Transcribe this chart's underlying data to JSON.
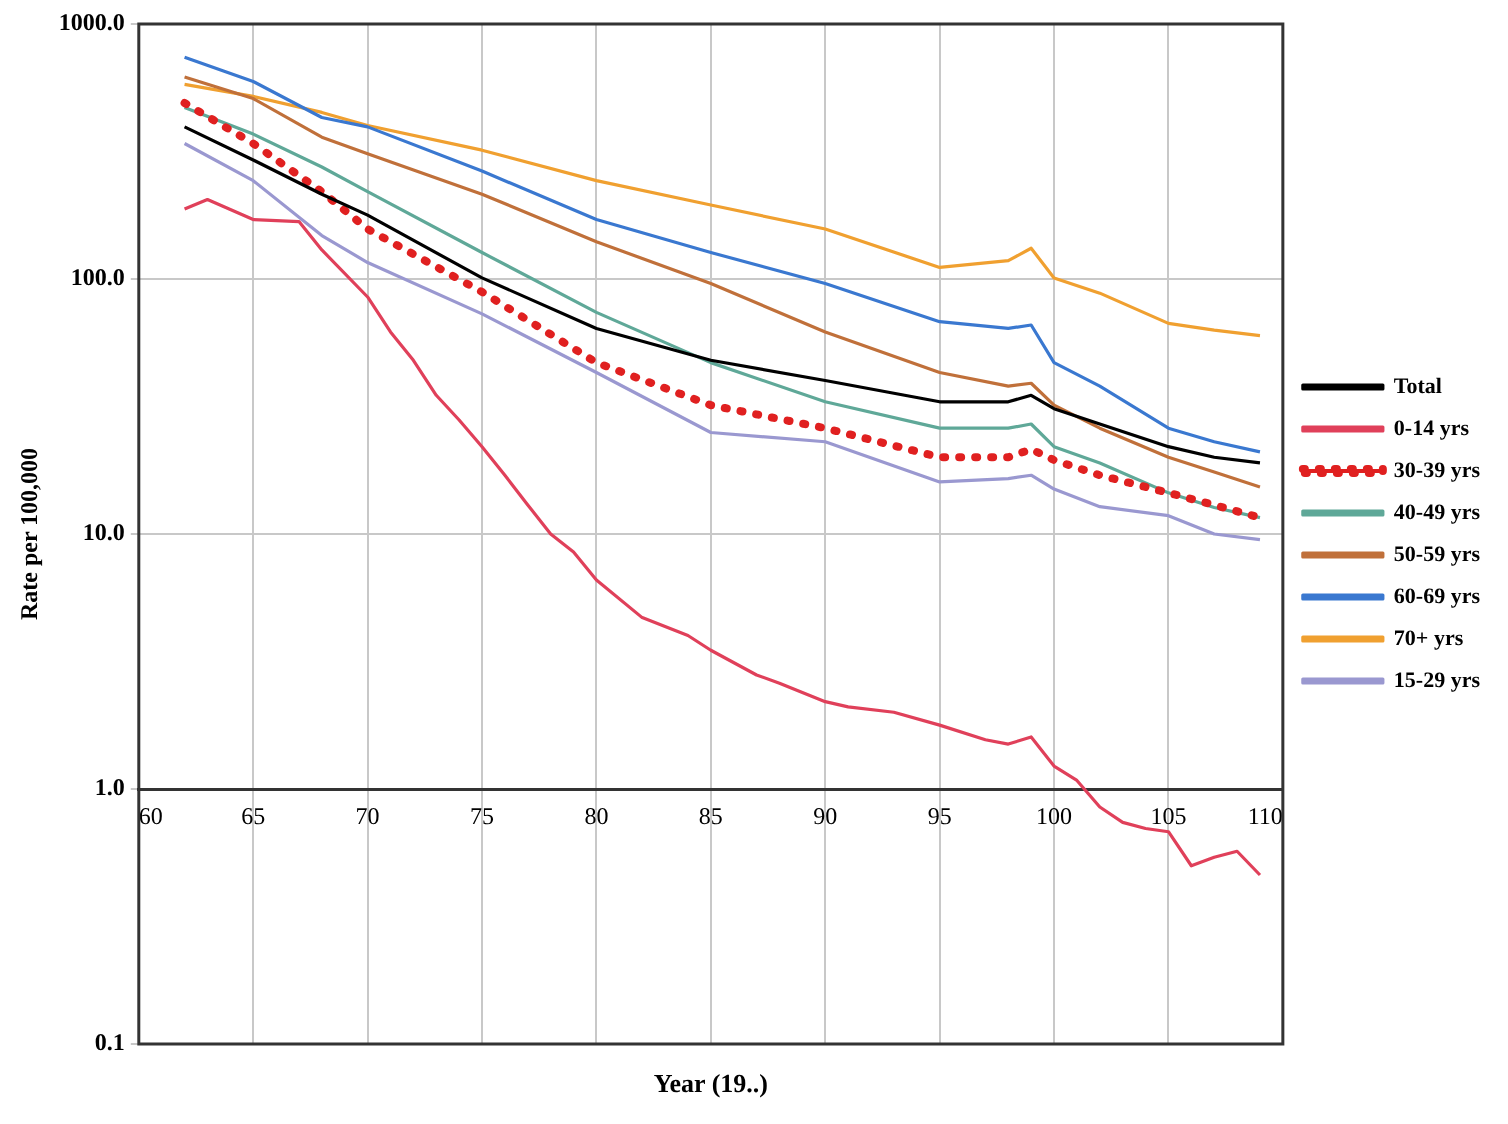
{
  "chart_data": {
    "type": "line",
    "xlabel": "Year (19..)",
    "ylabel": "Rate per 100,000",
    "log": "y",
    "grid": true,
    "legend": "right",
    "marker": "none",
    "line_style": "solid",
    "xlim": [
      60,
      110
    ],
    "xticks": [
      60,
      65,
      70,
      75,
      80,
      85,
      90,
      95,
      100,
      105,
      110
    ],
    "ylim": [
      0.1,
      1000
    ],
    "yticks": [
      {
        "value": 0.1,
        "label": "0.1"
      },
      {
        "value": 1,
        "label": "1.0"
      },
      {
        "value": 10,
        "label": "10.0"
      },
      {
        "value": 100,
        "label": "100.0"
      },
      {
        "value": 1000,
        "label": "1000.0"
      }
    ],
    "x": [
      62,
      65,
      68,
      70,
      75,
      80,
      85,
      90,
      95,
      98,
      99,
      100,
      102,
      105,
      107,
      109
    ],
    "series": [
      {
        "name": "Total",
        "color": "#000000",
        "values": [
          395,
          293,
          215,
          178,
          101,
          64,
          48,
          40,
          33,
          33,
          35,
          31,
          27,
          22,
          20,
          19
        ]
      },
      {
        "name": "0-14 yrs",
        "color": "#e0405a",
        "x": [
          62,
          63,
          65,
          67,
          68,
          70,
          71,
          72,
          73,
          74,
          75,
          76,
          77,
          78,
          79,
          80,
          82,
          84,
          85,
          87,
          88,
          90,
          91,
          93,
          95,
          97,
          98,
          99,
          100,
          101,
          102,
          103,
          104,
          105,
          106,
          107,
          108,
          109
        ],
        "values": [
          188,
          205,
          171,
          168,
          130,
          85,
          62,
          48,
          35,
          28,
          22,
          17,
          13,
          10,
          8.5,
          6.6,
          4.7,
          4.0,
          3.5,
          2.8,
          2.6,
          2.2,
          2.1,
          2.0,
          1.78,
          1.56,
          1.5,
          1.6,
          1.23,
          1.08,
          0.85,
          0.74,
          0.7,
          0.68,
          0.5,
          0.54,
          0.57,
          0.46
        ]
      },
      {
        "name": "30-39 yrs",
        "color": "#e02020",
        "line_style": "dotted",
        "values": [
          490,
          340,
          220,
          157,
          89,
          47,
          32,
          26,
          20,
          20,
          21.5,
          19.5,
          17,
          14.5,
          13,
          11.6
        ]
      },
      {
        "name": "40-49 yrs",
        "color": "#5fa898",
        "values": [
          470,
          370,
          275,
          220,
          127,
          74,
          47,
          33,
          26,
          26,
          27,
          22,
          19,
          14.5,
          12.7,
          11.6
        ]
      },
      {
        "name": "50-59 yrs",
        "color": "#c0703a",
        "values": [
          620,
          510,
          360,
          310,
          215,
          140,
          96,
          62,
          43,
          38,
          39,
          32,
          26,
          20,
          17.5,
          15.3
        ]
      },
      {
        "name": "60-69 yrs",
        "color": "#3a78d0",
        "values": [
          740,
          595,
          430,
          395,
          265,
          171,
          127,
          96,
          68,
          64,
          66,
          47,
          38,
          26,
          23,
          21
        ]
      },
      {
        "name": "70+ yrs",
        "color": "#f0a030",
        "values": [
          580,
          520,
          450,
          400,
          320,
          243,
          195,
          157,
          111,
          118,
          132,
          101,
          88,
          67,
          63,
          60
        ]
      },
      {
        "name": "15-29 yrs",
        "color": "#9a98d0",
        "values": [
          340,
          243,
          148,
          116,
          73,
          43,
          25,
          23,
          16,
          16.5,
          17,
          15,
          12.8,
          11.8,
          10,
          9.5
        ]
      }
    ]
  }
}
